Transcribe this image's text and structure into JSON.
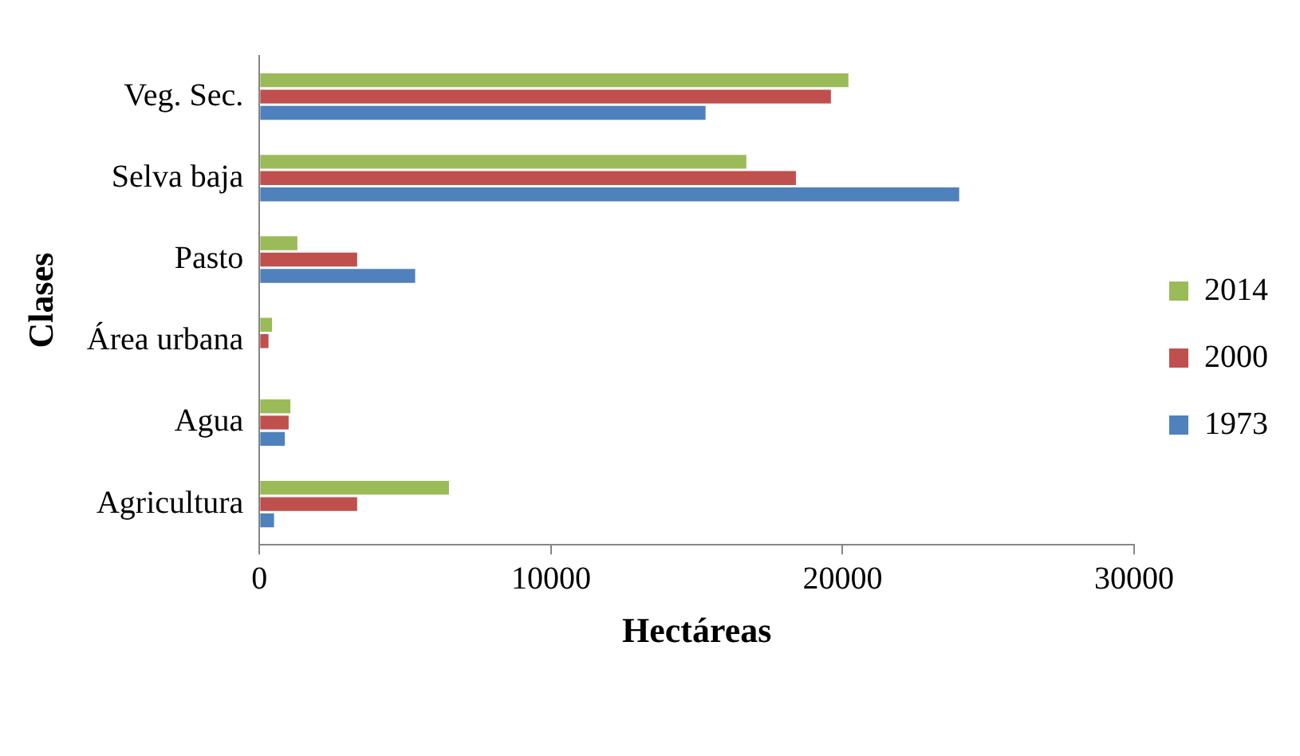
{
  "chart_data": {
    "type": "bar",
    "orientation": "horizontal",
    "xlabel": "Hectáreas",
    "ylabel": "Clases",
    "categories": [
      "Veg. Sec.",
      "Selva baja",
      "Pasto",
      "Área urbana",
      "Agua",
      "Agricultura"
    ],
    "series": [
      {
        "name": "2014",
        "color": "#9bbb59",
        "values": [
          20200,
          16700,
          1300,
          430,
          1060,
          6500
        ]
      },
      {
        "name": "2000",
        "color": "#c0504d",
        "values": [
          19600,
          18400,
          3350,
          310,
          1000,
          3350
        ]
      },
      {
        "name": "1973",
        "color": "#4f81bd",
        "values": [
          15300,
          24000,
          5340,
          0,
          870,
          500
        ]
      }
    ],
    "xlim": [
      0,
      30000
    ],
    "xticks": [
      0,
      10000,
      20000,
      30000
    ],
    "grid": false,
    "legend": "right"
  }
}
